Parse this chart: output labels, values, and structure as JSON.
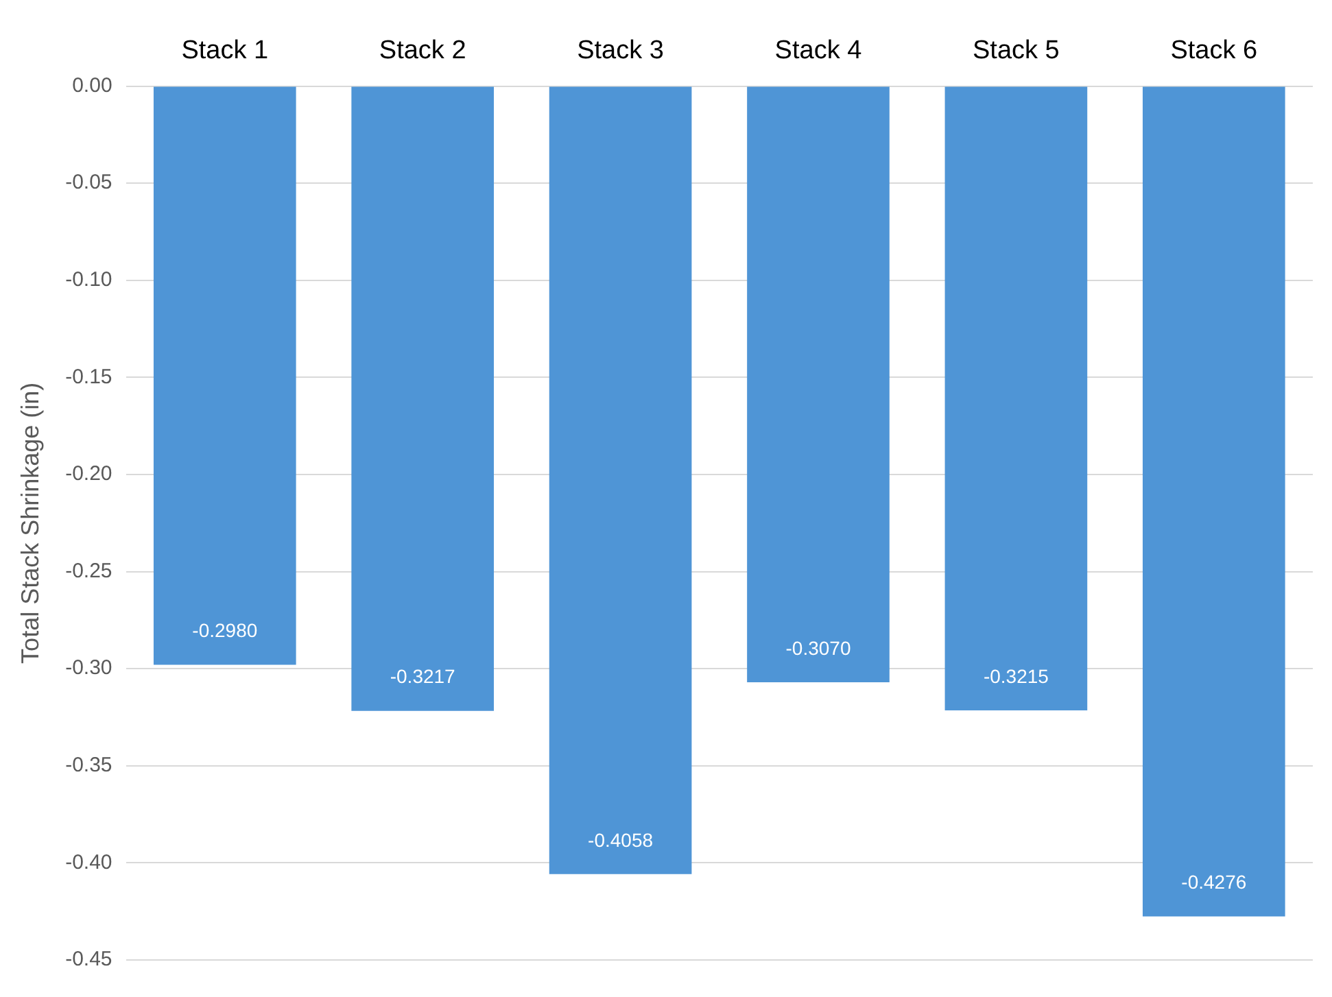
{
  "chart_data": {
    "type": "bar",
    "ylabel": "Total Stack Shrinkage (in)",
    "categories": [
      "Stack 1",
      "Stack 2",
      "Stack 3",
      "Stack 4",
      "Stack 5",
      "Stack 6"
    ],
    "values": [
      -0.298,
      -0.3217,
      -0.4058,
      -0.307,
      -0.3215,
      -0.4276
    ],
    "value_labels": [
      "-0.2980",
      "-0.3217",
      "-0.4058",
      "-0.3070",
      "-0.3215",
      "-0.4276"
    ],
    "color": "#4f95d6",
    "ylim": [
      -0.45,
      0
    ],
    "yticks": [
      {
        "value": 0,
        "label": "0.00"
      },
      {
        "value": -0.05,
        "label": "-0.05"
      },
      {
        "value": -0.1,
        "label": "-0.10"
      },
      {
        "value": -0.15,
        "label": "-0.15"
      },
      {
        "value": -0.2,
        "label": "-0.20"
      },
      {
        "value": -0.25,
        "label": "-0.25"
      },
      {
        "value": -0.3,
        "label": "-0.30"
      },
      {
        "value": -0.35,
        "label": "-0.35"
      },
      {
        "value": -0.4,
        "label": "-0.40"
      },
      {
        "value": -0.45,
        "label": "-0.45"
      }
    ],
    "grid": "y",
    "legend": false
  }
}
